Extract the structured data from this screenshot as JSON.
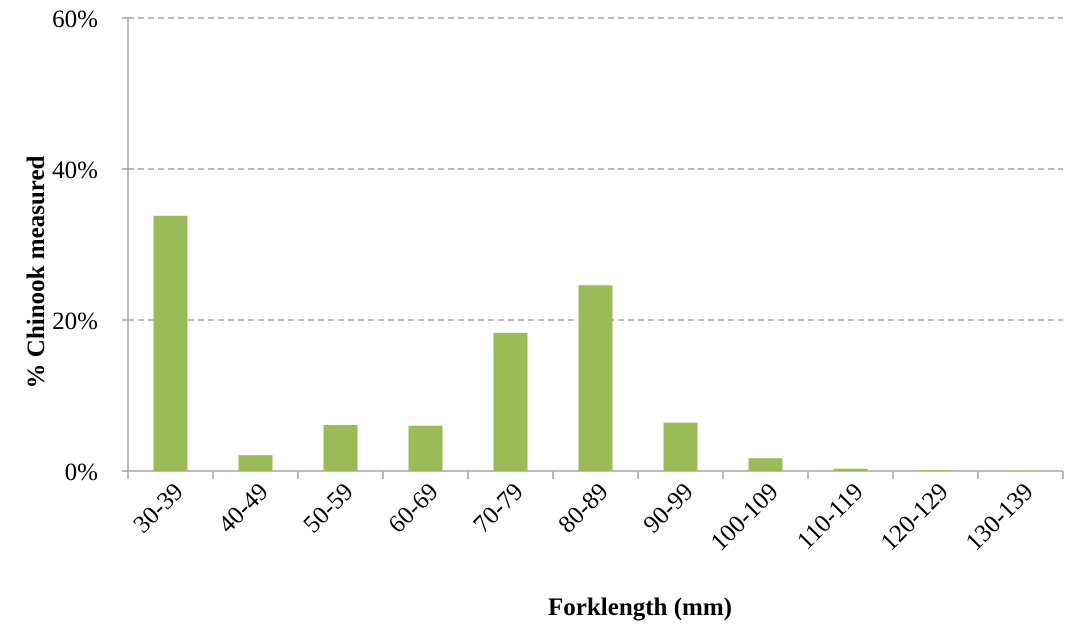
{
  "chart_data": {
    "type": "bar",
    "x_label": "Forklength (mm)",
    "y_label": "% Chinook measured",
    "categories": [
      "30-39",
      "40-49",
      "50-59",
      "60-69",
      "70-79",
      "80-89",
      "90-99",
      "100-109",
      "110-119",
      "120-129",
      "130-139"
    ],
    "values": [
      33.8,
      2.1,
      6.1,
      6.0,
      18.3,
      24.6,
      6.4,
      1.7,
      0.3,
      0.1,
      0.05
    ],
    "color": "#9bbb59",
    "ylim": [
      0,
      60
    ],
    "yticks": [
      {
        "value": 0,
        "label": "0%"
      },
      {
        "value": 20,
        "label": "20%"
      },
      {
        "value": 40,
        "label": "40%"
      },
      {
        "value": 60,
        "label": "60%"
      }
    ],
    "grid": true
  }
}
